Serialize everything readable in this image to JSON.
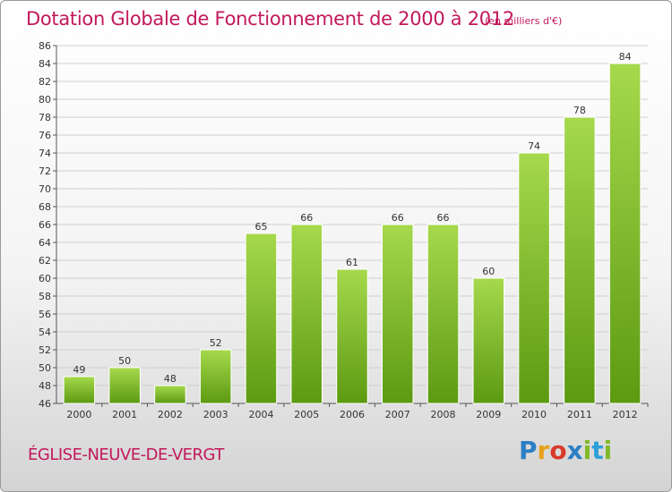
{
  "title": "Dotation Globale de Fonctionnement de 2000 à 2012",
  "subtitle": "(en milliers d'€)",
  "commune": "ÉGLISE-NEUVE-DE-VERGT",
  "logo": {
    "text": "Proxiti",
    "colors": [
      "#2b7fc4",
      "#e8a11a",
      "#d93a2b",
      "#2b7fc4",
      "#7fb927",
      "#2b9fd9",
      "#7fb927"
    ]
  },
  "colors": {
    "title": "#c2185b",
    "bar_top": "#a6d94c",
    "bar_bottom": "#5c9a12",
    "grid": "#cfcfcf",
    "axis": "#555555"
  },
  "chart_data": {
    "type": "bar",
    "categories": [
      "2000",
      "2001",
      "2002",
      "2003",
      "2004",
      "2005",
      "2006",
      "2007",
      "2008",
      "2009",
      "2010",
      "2011",
      "2012"
    ],
    "values": [
      49,
      50,
      48,
      52,
      65,
      66,
      61,
      66,
      66,
      60,
      74,
      78,
      84
    ],
    "ylim": [
      46,
      86
    ],
    "ytick_step": 2,
    "grid": true,
    "xlabel": "",
    "ylabel": ""
  }
}
